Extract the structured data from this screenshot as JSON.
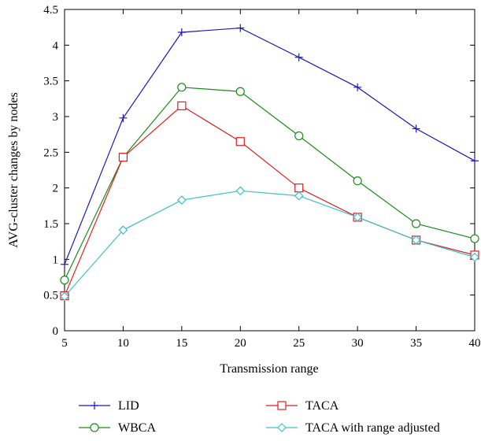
{
  "chart_data": {
    "type": "line",
    "title": "",
    "xlabel": "Transmission range",
    "ylabel": "AVG-cluster changes by nodes",
    "xlim": [
      5,
      40
    ],
    "ylim": [
      0,
      4.5
    ],
    "x": [
      5,
      10,
      15,
      20,
      25,
      30,
      35,
      40
    ],
    "xticks": [
      "5",
      "10",
      "15",
      "20",
      "25",
      "30",
      "35",
      "40"
    ],
    "yticks": [
      "0",
      "0.5",
      "1",
      "1.5",
      "2",
      "2.5",
      "3",
      "3.5",
      "4",
      "4.5"
    ],
    "grid": false,
    "legend_position": "bottom",
    "series": [
      {
        "name": "LID",
        "color": "#1a1ab5",
        "marker": "plus",
        "values": [
          0.93,
          2.98,
          4.18,
          4.24,
          3.83,
          3.41,
          2.83,
          2.38
        ]
      },
      {
        "name": "WBCA",
        "color": "#1a8c1a",
        "marker": "circle",
        "values": [
          0.71,
          2.43,
          3.41,
          3.35,
          2.73,
          2.1,
          1.5,
          1.29
        ]
      },
      {
        "name": "TACA",
        "color": "#e01e1e",
        "marker": "square",
        "values": [
          0.49,
          2.43,
          3.15,
          2.65,
          2.0,
          1.59,
          1.27,
          1.06
        ]
      },
      {
        "name": "TACA with range adjusted",
        "color": "#3cc0c8",
        "marker": "diamond",
        "values": [
          0.48,
          1.41,
          1.83,
          1.96,
          1.89,
          1.59,
          1.27,
          1.03
        ]
      }
    ]
  }
}
